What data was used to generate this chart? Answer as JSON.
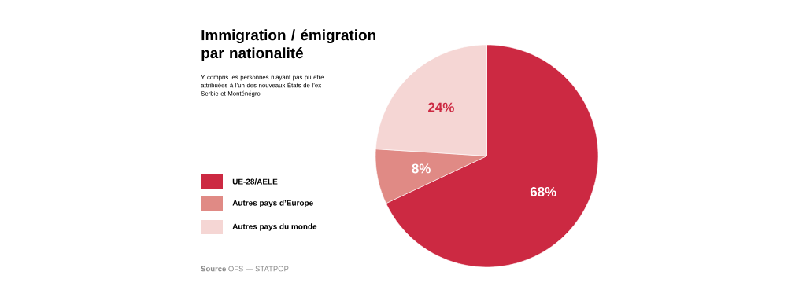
{
  "chart_data": {
    "type": "pie",
    "title": "Immigration / émigration par nationalité",
    "subtitle": "Y compris les personnes n’ayant pas pu être attribuées à l’un des nouveaux États de l’ex Serbie-et-Monténégro",
    "categories": [
      "UE-28/AELE",
      "Autres pays d’Europe",
      "Autres pays du monde"
    ],
    "values": [
      68,
      8,
      24
    ],
    "colors": [
      "#cc2942",
      "#e08a85",
      "#f5d6d4"
    ],
    "value_labels": [
      "68%",
      "8%",
      "24%"
    ],
    "legend": "left",
    "annotations": [
      "**Source** OFS — STATPOP"
    ]
  }
}
